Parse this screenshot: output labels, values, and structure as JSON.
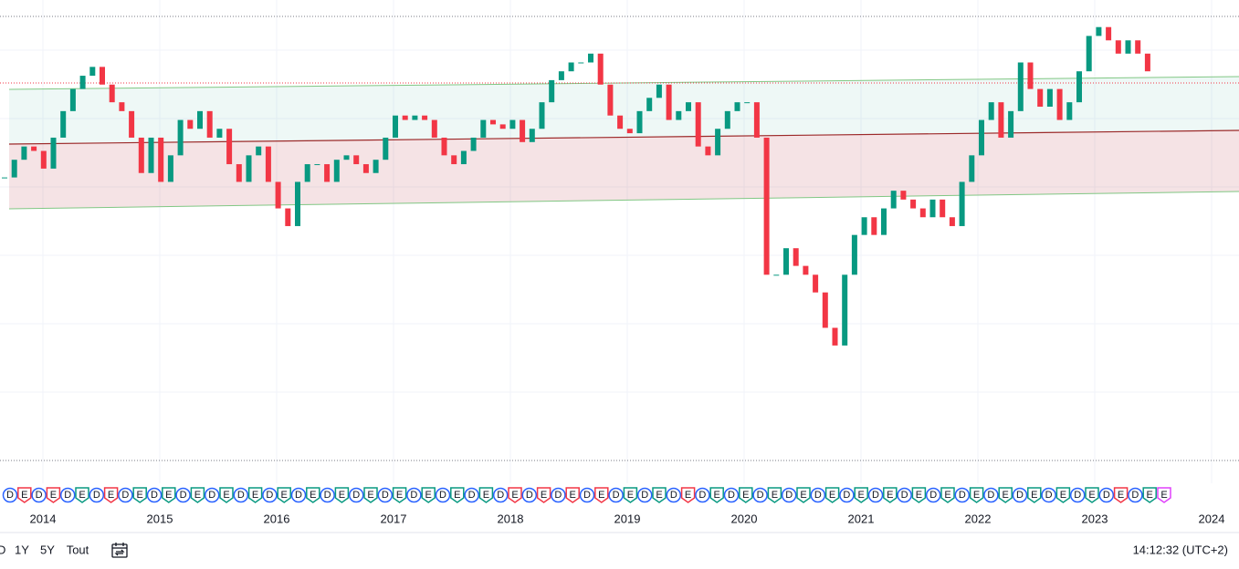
{
  "chart_data": {
    "type": "candlestick",
    "values": [
      64,
      68,
      71,
      70,
      66,
      73,
      79,
      84,
      87,
      89,
      85,
      81,
      79,
      73,
      65,
      73,
      63,
      69,
      77,
      75,
      79,
      73,
      75,
      67,
      63,
      69,
      71,
      63,
      57,
      53,
      63,
      67,
      67,
      63,
      68,
      69,
      67,
      65,
      68,
      73,
      78,
      77,
      78,
      77,
      73,
      69,
      67,
      70,
      73,
      77,
      76,
      75,
      77,
      72,
      75,
      81,
      86,
      88,
      90,
      90,
      92,
      85,
      78,
      75,
      74,
      79,
      82,
      85,
      77,
      79,
      81,
      71,
      69,
      75,
      79,
      81,
      81,
      73,
      42,
      42,
      48,
      44,
      42,
      38,
      30,
      26,
      42,
      51,
      55,
      51,
      57,
      61,
      59,
      57,
      55,
      59,
      55,
      53,
      63,
      69,
      77,
      81,
      73,
      79,
      90,
      84,
      80,
      84,
      77,
      81,
      88,
      96,
      98,
      95,
      92,
      95,
      92,
      88
    ],
    "ylim": [
      0,
      100
    ],
    "up_color": "#089981",
    "down_color": "#f23645",
    "time_labels": [
      "2014",
      "2015",
      "2016",
      "2017",
      "2018",
      "2019",
      "2020",
      "2021",
      "2022",
      "2023",
      "2024"
    ],
    "events": [
      {
        "label": "D",
        "color": "#2962ff"
      },
      {
        "label": "E",
        "color": "#f23645"
      },
      {
        "label": "D",
        "color": "#2962ff"
      },
      {
        "label": "E",
        "color": "#f23645"
      },
      {
        "label": "D",
        "color": "#2962ff"
      },
      {
        "label": "E",
        "color": "#089981"
      },
      {
        "label": "D",
        "color": "#2962ff"
      },
      {
        "label": "E",
        "color": "#f23645"
      },
      {
        "label": "D",
        "color": "#2962ff"
      },
      {
        "label": "E",
        "color": "#089981"
      },
      {
        "label": "D",
        "color": "#2962ff"
      },
      {
        "label": "E",
        "color": "#089981"
      },
      {
        "label": "D",
        "color": "#2962ff"
      },
      {
        "label": "E",
        "color": "#089981"
      },
      {
        "label": "D",
        "color": "#2962ff"
      },
      {
        "label": "E",
        "color": "#089981"
      },
      {
        "label": "D",
        "color": "#2962ff"
      },
      {
        "label": "E",
        "color": "#089981"
      },
      {
        "label": "D",
        "color": "#2962ff"
      },
      {
        "label": "E",
        "color": "#089981"
      },
      {
        "label": "D",
        "color": "#2962ff"
      },
      {
        "label": "E",
        "color": "#089981"
      },
      {
        "label": "D",
        "color": "#2962ff"
      },
      {
        "label": "E",
        "color": "#089981"
      },
      {
        "label": "D",
        "color": "#2962ff"
      },
      {
        "label": "E",
        "color": "#089981"
      },
      {
        "label": "D",
        "color": "#2962ff"
      },
      {
        "label": "E",
        "color": "#089981"
      },
      {
        "label": "D",
        "color": "#2962ff"
      },
      {
        "label": "E",
        "color": "#089981"
      },
      {
        "label": "D",
        "color": "#2962ff"
      },
      {
        "label": "E",
        "color": "#089981"
      },
      {
        "label": "D",
        "color": "#2962ff"
      },
      {
        "label": "E",
        "color": "#089981"
      },
      {
        "label": "D",
        "color": "#2962ff"
      },
      {
        "label": "E",
        "color": "#f23645"
      },
      {
        "label": "D",
        "color": "#2962ff"
      },
      {
        "label": "E",
        "color": "#f23645"
      },
      {
        "label": "D",
        "color": "#2962ff"
      },
      {
        "label": "E",
        "color": "#f23645"
      },
      {
        "label": "D",
        "color": "#2962ff"
      },
      {
        "label": "E",
        "color": "#f23645"
      },
      {
        "label": "D",
        "color": "#2962ff"
      },
      {
        "label": "E",
        "color": "#089981"
      },
      {
        "label": "D",
        "color": "#2962ff"
      },
      {
        "label": "E",
        "color": "#089981"
      },
      {
        "label": "D",
        "color": "#2962ff"
      },
      {
        "label": "E",
        "color": "#f23645"
      },
      {
        "label": "D",
        "color": "#2962ff"
      },
      {
        "label": "E",
        "color": "#089981"
      },
      {
        "label": "D",
        "color": "#2962ff"
      },
      {
        "label": "E",
        "color": "#089981"
      },
      {
        "label": "D",
        "color": "#2962ff"
      },
      {
        "label": "E",
        "color": "#089981"
      },
      {
        "label": "D",
        "color": "#2962ff"
      },
      {
        "label": "E",
        "color": "#089981"
      },
      {
        "label": "D",
        "color": "#2962ff"
      },
      {
        "label": "E",
        "color": "#089981"
      },
      {
        "label": "D",
        "color": "#2962ff"
      },
      {
        "label": "E",
        "color": "#089981"
      },
      {
        "label": "D",
        "color": "#2962ff"
      },
      {
        "label": "E",
        "color": "#089981"
      },
      {
        "label": "D",
        "color": "#2962ff"
      },
      {
        "label": "E",
        "color": "#089981"
      },
      {
        "label": "D",
        "color": "#2962ff"
      },
      {
        "label": "E",
        "color": "#089981"
      },
      {
        "label": "D",
        "color": "#2962ff"
      },
      {
        "label": "E",
        "color": "#089981"
      },
      {
        "label": "D",
        "color": "#2962ff"
      },
      {
        "label": "E",
        "color": "#089981"
      },
      {
        "label": "D",
        "color": "#2962ff"
      },
      {
        "label": "E",
        "color": "#089981"
      },
      {
        "label": "D",
        "color": "#2962ff"
      },
      {
        "label": "E",
        "color": "#089981"
      },
      {
        "label": "D",
        "color": "#2962ff"
      },
      {
        "label": "E",
        "color": "#089981"
      },
      {
        "label": "D",
        "color": "#2962ff"
      },
      {
        "label": "E",
        "color": "#f23645"
      },
      {
        "label": "D",
        "color": "#2962ff"
      },
      {
        "label": "E",
        "color": "#089981"
      },
      {
        "label": "E",
        "color": "#e040fb"
      }
    ]
  },
  "toolbar": {
    "ranges": [
      "D",
      "1Y",
      "5Y",
      "Tout"
    ],
    "clock": "14:12:32 (UTC+2)"
  }
}
